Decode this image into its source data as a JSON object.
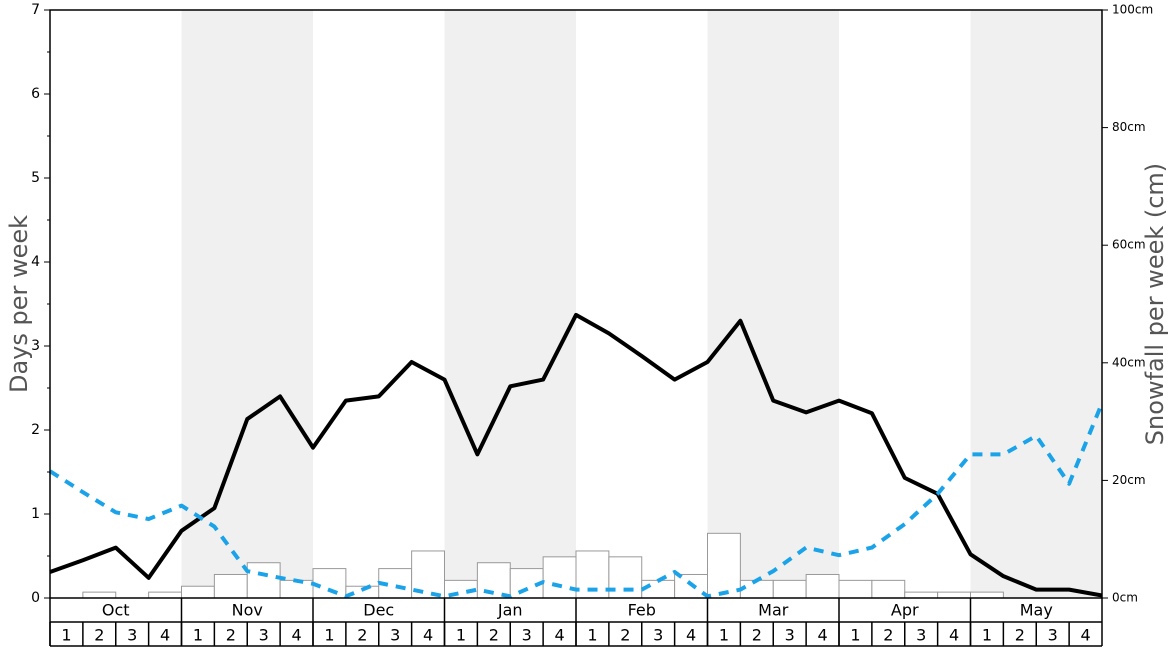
{
  "chart_data": {
    "type": "bar-line",
    "y_label": "Days per week",
    "y2_label": "Snowfall per week (cm)",
    "months": [
      "Oct",
      "Nov",
      "Dec",
      "Jan",
      "Feb",
      "Mar",
      "Apr",
      "May"
    ],
    "weeks": [
      "1",
      "2",
      "3",
      "4"
    ],
    "shaded_months": [
      false,
      true,
      false,
      true,
      false,
      true,
      false,
      true
    ],
    "ylim": [
      0,
      7
    ],
    "yticks": [
      0,
      1,
      2,
      3,
      4,
      5,
      6,
      7
    ],
    "y2lim": [
      0,
      100
    ],
    "y2ticks": [
      {
        "value": 0,
        "label": "0cm"
      },
      {
        "value": 20,
        "label": "20cm"
      },
      {
        "value": 40,
        "label": "40cm"
      },
      {
        "value": 60,
        "label": "60cm"
      },
      {
        "value": 80,
        "label": "80cm"
      },
      {
        "value": 100,
        "label": "100cm"
      }
    ],
    "series": [
      {
        "type": "bar",
        "axis": "y2",
        "color": "#ffffff",
        "values": [
          0,
          1,
          0,
          1,
          2,
          4,
          6,
          3,
          5,
          2,
          5,
          8,
          3,
          6,
          5,
          7,
          8,
          7,
          3,
          4,
          11,
          3,
          3,
          4,
          3,
          3,
          1,
          1,
          1,
          0,
          0,
          0
        ]
      },
      {
        "type": "line",
        "color": "#000000",
        "values": [
          0.31,
          0.45,
          0.6,
          0.24,
          0.8,
          1.07,
          2.13,
          2.4,
          1.79,
          2.35,
          2.4,
          2.81,
          2.6,
          1.71,
          2.52,
          2.6,
          3.37,
          3.15,
          2.88,
          2.6,
          2.81,
          3.3,
          2.35,
          2.21,
          2.35,
          2.2,
          1.43,
          1.24,
          0.52,
          0.26,
          0.1,
          0.1,
          0.03
        ]
      },
      {
        "type": "line",
        "color": "#1aa3e8",
        "dashed": true,
        "values": [
          1.51,
          1.26,
          1.02,
          0.94,
          1.1,
          0.85,
          0.32,
          0.24,
          0.17,
          0.02,
          0.18,
          0.1,
          0.02,
          0.1,
          0.02,
          0.19,
          0.1,
          0.1,
          0.1,
          0.31,
          0.02,
          0.1,
          0.32,
          0.6,
          0.51,
          0.6,
          0.88,
          1.24,
          1.71,
          1.71,
          1.93,
          1.36,
          2.32
        ]
      }
    ]
  }
}
